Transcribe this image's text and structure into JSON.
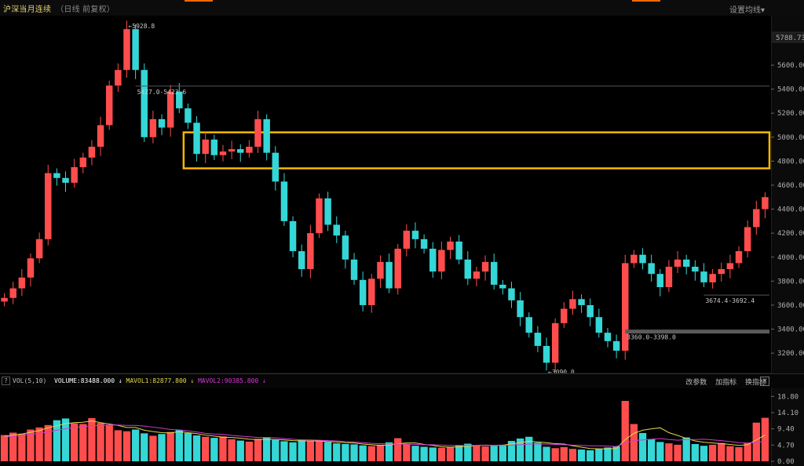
{
  "header": {
    "title": "沪深当月连续",
    "subtitle": "（日线 前复权）",
    "settings_label": "设置均线▾"
  },
  "volume_bar": {
    "help": "?",
    "label": "VOL(5,10)",
    "volume": "VOLUME:83488.000",
    "mavol1": "MAVOL1:82877.800",
    "mavol2": "MAVOL2:90385.800",
    "buttons": [
      "改参数",
      "加指标",
      "换指标"
    ],
    "close": "×"
  },
  "colors": {
    "up": "#ff4d4d",
    "down": "#35d6d6",
    "highlight_box": "#f5b800",
    "mavol1": "#e0d84a",
    "mavol2": "#d23ad2",
    "price_line": "#555555"
  },
  "chart_data": [
    {
      "type": "candlestick",
      "ylim": [
        3070,
        5960
      ],
      "y_ticks": [
        "5600.00",
        "5400.00",
        "5200.00",
        "5000.00",
        "4800.00",
        "4600.00",
        "4400.00",
        "4200.00",
        "4000.00",
        "3800.00",
        "3600.00",
        "3400.00",
        "3200.00"
      ],
      "y_tick_values": [
        5600,
        5400,
        5200,
        5000,
        4800,
        4600,
        4400,
        4200,
        4000,
        3800,
        3600,
        3400,
        3200
      ],
      "current_price_label": "5788.73",
      "current_price": 5788.73,
      "closes": [
        3660,
        3740,
        3830,
        3990,
        4150,
        4700,
        4660,
        4620,
        4750,
        4830,
        4920,
        5100,
        5430,
        5560,
        5900,
        5560,
        5000,
        5150,
        5080,
        5380,
        5240,
        5120,
        4860,
        4980,
        4850,
        4880,
        4900,
        4870,
        4920,
        5150,
        4870,
        4630,
        4300,
        4050,
        3900,
        4200,
        4490,
        4270,
        4180,
        3980,
        3810,
        3600,
        3820,
        3960,
        3740,
        4070,
        4220,
        4150,
        4070,
        3880,
        4060,
        4130,
        3980,
        3820,
        3880,
        3960,
        3770,
        3740,
        3640,
        3500,
        3370,
        3260,
        3120,
        3450,
        3570,
        3650,
        3600,
        3500,
        3370,
        3300,
        3220,
        3950,
        4020,
        3950,
        3860,
        3750,
        3920,
        3980,
        3920,
        3880,
        3790,
        3860,
        3900,
        3950,
        4050,
        4250,
        4400,
        4500
      ],
      "annotations": [
        {
          "text": "←5928.8",
          "value": 5928.8,
          "label_index": 14
        },
        {
          "text": "5427.0-5423.6",
          "value": 5425.3,
          "label_index": 15
        },
        {
          "text": "←3090.0",
          "value": 3090.0,
          "label_index": 62
        },
        {
          "text": "3360.0-3398.0",
          "value": 3380.0,
          "label_index": 71
        },
        {
          "text": "3674.4-3692.4",
          "value": 3683.4,
          "label_index": 80
        }
      ],
      "highlight_range": {
        "index_from": 21,
        "index_to": 87,
        "y_low": 4740,
        "y_high": 5040
      }
    },
    {
      "type": "bar",
      "ylim": [
        0,
        20
      ],
      "y_ticks": [
        "18.80",
        "14.10",
        "9.40",
        "4.70",
        "0.00"
      ],
      "y_tick_values": [
        18.8,
        14.1,
        9.4,
        4.7,
        0.0
      ],
      "values": [
        7.6,
        8.3,
        8.0,
        9.2,
        9.8,
        10.5,
        11.9,
        12.4,
        11.0,
        10.8,
        12.5,
        11.1,
        10.6,
        9.0,
        8.7,
        9.2,
        8.1,
        7.4,
        7.9,
        8.5,
        9.1,
        8.2,
        7.5,
        7.1,
        6.8,
        7.2,
        6.4,
        6.0,
        5.7,
        6.5,
        7.0,
        6.2,
        5.8,
        5.5,
        6.3,
        5.9,
        6.1,
        5.6,
        5.2,
        5.0,
        4.9,
        4.6,
        4.4,
        4.8,
        5.5,
        6.7,
        5.0,
        4.5,
        4.2,
        4.0,
        3.9,
        4.1,
        4.7,
        5.1,
        4.6,
        4.3,
        4.5,
        4.8,
        5.9,
        6.6,
        7.1,
        5.4,
        4.2,
        3.8,
        4.1,
        3.6,
        3.4,
        3.2,
        3.6,
        4.0,
        4.3,
        17.5,
        10.8,
        8.2,
        6.4,
        5.6,
        5.2,
        4.8,
        6.9,
        5.0,
        4.5,
        4.8,
        5.3,
        4.4,
        4.1,
        5.2,
        11.2,
        12.6
      ],
      "mavol1": [
        7.2,
        7.6,
        7.9,
        8.4,
        8.9,
        9.7,
        10.3,
        10.9,
        11.2,
        11.3,
        11.7,
        11.2,
        10.8,
        10.4,
        9.8,
        9.8,
        9.0,
        8.6,
        8.3,
        8.2,
        8.6,
        8.3,
        8.0,
        7.6,
        7.3,
        7.0,
        6.9,
        6.7,
        6.4,
        6.3,
        6.4,
        6.3,
        6.2,
        6.0,
        5.9,
        5.9,
        5.9,
        5.7,
        5.6,
        5.4,
        5.3,
        5.0,
        4.8,
        4.6,
        4.7,
        5.1,
        5.3,
        5.3,
        4.9,
        4.6,
        4.2,
        4.1,
        4.2,
        4.3,
        4.6,
        4.7,
        4.6,
        4.7,
        5.0,
        5.4,
        5.8,
        5.6,
        5.4,
        5.1,
        5.0,
        4.5,
        4.1,
        3.7,
        3.6,
        3.6,
        3.7,
        6.3,
        8.1,
        9.0,
        9.4,
        9.7,
        8.3,
        7.5,
        6.6,
        5.9,
        5.5,
        5.3,
        5.1,
        4.9,
        4.6,
        4.8,
        6.2,
        7.6
      ],
      "mavol2": [
        7.0,
        7.2,
        7.5,
        7.8,
        8.1,
        8.5,
        9.0,
        9.4,
        9.8,
        10.0,
        10.3,
        10.4,
        10.5,
        10.5,
        10.4,
        10.4,
        10.2,
        9.9,
        9.6,
        9.2,
        9.1,
        8.8,
        8.5,
        8.1,
        7.9,
        7.8,
        7.5,
        7.3,
        7.1,
        6.9,
        6.9,
        6.8,
        6.6,
        6.4,
        6.2,
        6.2,
        6.1,
        6.0,
        5.9,
        5.7,
        5.6,
        5.4,
        5.2,
        5.1,
        5.0,
        5.0,
        5.0,
        4.9,
        4.8,
        4.8,
        4.7,
        4.6,
        4.6,
        4.6,
        4.6,
        4.6,
        4.6,
        4.6,
        4.7,
        4.8,
        5.0,
        5.0,
        5.0,
        4.9,
        4.8,
        4.7,
        4.6,
        4.5,
        4.5,
        4.4,
        4.3,
        5.3,
        6.0,
        6.2,
        6.4,
        6.6,
        6.3,
        6.1,
        6.3,
        6.3,
        6.4,
        6.2,
        6.0,
        5.7,
        5.4,
        5.3,
        5.5,
        5.8
      ]
    }
  ]
}
